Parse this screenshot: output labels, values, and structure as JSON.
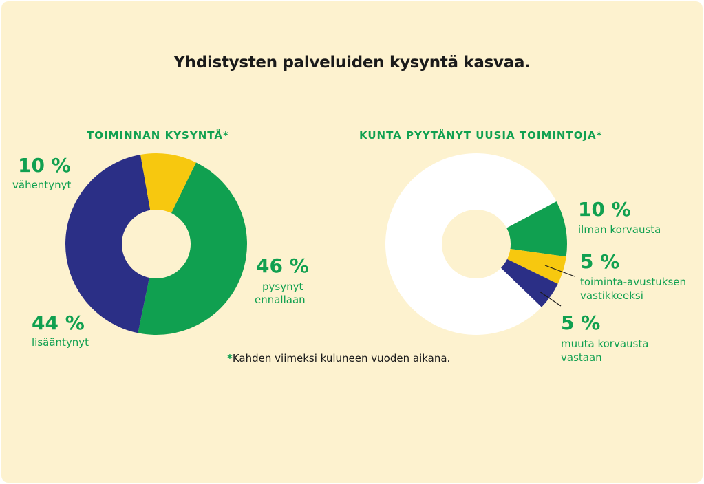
{
  "title": "Yhdistysten palveluiden kysyntä kasvaa.",
  "footnote": {
    "star": "*",
    "text": "Kahden viimeksi kuluneen vuoden aikana."
  },
  "colors": {
    "background": "#fdf2cf",
    "green": "#10a050",
    "yellow": "#f7c80f",
    "navy": "#2b2f86",
    "white": "#ffffff"
  },
  "chart_data": [
    {
      "type": "pie",
      "title": "TOIMINNAN KYSYNTÄ*",
      "slices": [
        {
          "value": 46,
          "pct_label": "46 %",
          "label_line1": "pysynyt",
          "label_line2": "ennallaan",
          "color": "#10a050"
        },
        {
          "value": 44,
          "pct_label": "44 %",
          "label_line1": "lisääntynyt",
          "label_line2": "",
          "color": "#2b2f86"
        },
        {
          "value": 10,
          "pct_label": "10 %",
          "label_line1": "vähentynyt",
          "label_line2": "",
          "color": "#f7c80f"
        }
      ]
    },
    {
      "type": "pie",
      "title": "KUNTA PYYTÄNYT UUSIA TOIMINTOJA*",
      "slices": [
        {
          "value": 10,
          "pct_label": "10 %",
          "label_line1": "ilman korvausta",
          "label_line2": "",
          "color": "#10a050"
        },
        {
          "value": 5,
          "pct_label": "5 %",
          "label_line1": "toiminta-avustuksen",
          "label_line2": "vastikkeeksi",
          "color": "#f7c80f"
        },
        {
          "value": 5,
          "pct_label": "5 %",
          "label_line1": "muuta korvausta",
          "label_line2": "vastaan",
          "color": "#2b2f86"
        },
        {
          "value": 80,
          "color": "#ffffff"
        }
      ]
    }
  ]
}
